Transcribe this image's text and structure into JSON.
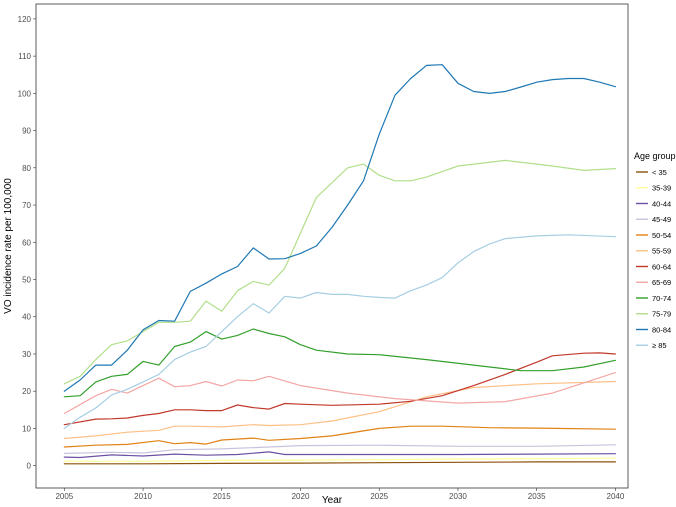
{
  "chart_data": {
    "type": "line",
    "xlabel": "Year",
    "ylabel": "VO incidence rate per 100,000",
    "xlim": [
      2003.2,
      2040.8
    ],
    "ylim": [
      -6,
      124
    ],
    "x_ticks": [
      "2005",
      "2010",
      "2015",
      "2020",
      "2025",
      "2030",
      "2035",
      "2040"
    ],
    "y_ticks": [
      "0",
      "10",
      "20",
      "30",
      "40",
      "50",
      "60",
      "70",
      "80",
      "90",
      "100",
      "110",
      "120"
    ],
    "grid": false,
    "legend": {
      "title": "Age group",
      "position": "right"
    },
    "series": [
      {
        "name": "< 35",
        "color": "#8c510a",
        "x": [
          2005,
          2010,
          2015,
          2020,
          2025,
          2030,
          2035,
          2040
        ],
        "y": [
          0.5,
          0.5,
          0.6,
          0.7,
          0.8,
          0.9,
          1.0,
          1.0
        ]
      },
      {
        "name": "35-39",
        "color": "#ffff99",
        "x": [
          2005,
          2010,
          2015,
          2020,
          2025,
          2030,
          2035,
          2040
        ],
        "y": [
          1.2,
          1.2,
          1.4,
          1.5,
          1.6,
          1.8,
          1.9,
          2.0
        ]
      },
      {
        "name": "40-44",
        "color": "#6a51a3",
        "x": [
          2005,
          2006,
          2008,
          2010,
          2012,
          2014,
          2016,
          2018,
          2019,
          2020,
          2025,
          2030,
          2035,
          2040
        ],
        "y": [
          2.3,
          2.2,
          2.9,
          2.6,
          3.1,
          2.8,
          3.0,
          3.7,
          3.0,
          3.0,
          3.0,
          3.0,
          3.1,
          3.2
        ]
      },
      {
        "name": "45-49",
        "color": "#c7c3dc",
        "x": [
          2005,
          2008,
          2010,
          2012,
          2015,
          2018,
          2020,
          2025,
          2030,
          2035,
          2040
        ],
        "y": [
          3.3,
          3.6,
          3.4,
          4.3,
          4.5,
          5.0,
          5.4,
          5.5,
          5.2,
          5.2,
          5.6
        ]
      },
      {
        "name": "50-54",
        "color": "#e08214",
        "x": [
          2005,
          2007,
          2009,
          2011,
          2012,
          2013,
          2014,
          2015,
          2017,
          2018,
          2020,
          2022,
          2025,
          2027,
          2029,
          2032,
          2035,
          2040
        ],
        "y": [
          5.0,
          5.5,
          5.7,
          6.7,
          5.9,
          6.2,
          5.8,
          6.9,
          7.4,
          6.8,
          7.3,
          8.0,
          10.0,
          10.6,
          10.6,
          10.2,
          10.1,
          9.8
        ]
      },
      {
        "name": "55-59",
        "color": "#fdc086",
        "x": [
          2005,
          2007,
          2009,
          2011,
          2012,
          2013,
          2015,
          2017,
          2018,
          2020,
          2022,
          2025,
          2028,
          2031,
          2035,
          2040
        ],
        "y": [
          7.3,
          8.0,
          9.0,
          9.5,
          10.6,
          10.6,
          10.4,
          11.0,
          10.8,
          11.0,
          12.0,
          14.5,
          18.5,
          21.0,
          22.0,
          22.6
        ]
      },
      {
        "name": "60-64",
        "color": "#c0392b",
        "x": [
          2005,
          2007,
          2008,
          2009,
          2010,
          2011,
          2012,
          2013,
          2014,
          2015,
          2016,
          2017,
          2018,
          2019,
          2020,
          2022,
          2025,
          2027,
          2029,
          2031,
          2033,
          2035,
          2036,
          2038,
          2039,
          2040
        ],
        "y": [
          11.0,
          12.5,
          12.6,
          12.8,
          13.5,
          14.0,
          15.0,
          15.0,
          14.8,
          14.8,
          16.3,
          15.6,
          15.2,
          16.7,
          16.5,
          16.2,
          16.5,
          17.3,
          18.8,
          21.5,
          24.5,
          27.8,
          29.5,
          30.2,
          30.3,
          30.0
        ]
      },
      {
        "name": "65-69",
        "color": "#f4a6a6",
        "x": [
          2005,
          2007,
          2008,
          2009,
          2010,
          2011,
          2012,
          2013,
          2014,
          2015,
          2016,
          2017,
          2018,
          2020,
          2023,
          2026,
          2030,
          2033,
          2036,
          2040
        ],
        "y": [
          14.0,
          18.8,
          20.5,
          19.5,
          21.5,
          23.5,
          21.2,
          21.5,
          22.6,
          21.4,
          23.0,
          22.8,
          24.0,
          21.5,
          19.5,
          18.0,
          16.8,
          17.2,
          19.5,
          25.0
        ]
      },
      {
        "name": "70-74",
        "color": "#33a02c",
        "x": [
          2005,
          2006,
          2007,
          2008,
          2009,
          2010,
          2011,
          2012,
          2013,
          2014,
          2015,
          2016,
          2017,
          2018,
          2019,
          2020,
          2021,
          2023,
          2025,
          2028,
          2031,
          2034,
          2036,
          2038,
          2040
        ],
        "y": [
          18.5,
          18.8,
          22.5,
          24.0,
          24.5,
          28.0,
          27.0,
          32.0,
          33.2,
          36.0,
          34.0,
          35.0,
          36.7,
          35.5,
          34.6,
          32.5,
          31.0,
          30.0,
          29.8,
          28.5,
          27.0,
          25.5,
          25.5,
          26.5,
          28.3
        ]
      },
      {
        "name": "75-79",
        "color": "#b2df8a",
        "x": [
          2005,
          2006,
          2007,
          2008,
          2009,
          2010,
          2011,
          2012,
          2013,
          2014,
          2015,
          2016,
          2017,
          2018,
          2019,
          2020,
          2021,
          2022,
          2023,
          2024,
          2025,
          2026,
          2027,
          2028,
          2030,
          2033,
          2036,
          2038,
          2040
        ],
        "y": [
          22.0,
          24.0,
          28.5,
          32.5,
          33.5,
          36.0,
          38.5,
          38.5,
          38.8,
          44.2,
          41.5,
          47.0,
          49.5,
          48.5,
          53.0,
          62.5,
          72.0,
          76.0,
          80.0,
          81.0,
          78.0,
          76.5,
          76.5,
          77.5,
          80.5,
          82.0,
          80.5,
          79.3,
          79.8
        ]
      },
      {
        "name": "80-84",
        "color": "#1f78b4",
        "x": [
          2005,
          2006,
          2007,
          2008,
          2009,
          2010,
          2011,
          2012,
          2013,
          2014,
          2015,
          2016,
          2017,
          2018,
          2019,
          2020,
          2021,
          2022,
          2023,
          2024,
          2025,
          2026,
          2027,
          2028,
          2029,
          2030,
          2031,
          2032,
          2033,
          2034,
          2035,
          2036,
          2037,
          2038,
          2039,
          2040
        ],
        "y": [
          20.0,
          23.0,
          27.0,
          27.0,
          31.0,
          36.5,
          39.0,
          38.8,
          46.8,
          49.0,
          51.5,
          53.5,
          58.5,
          55.5,
          55.6,
          57.0,
          59.0,
          64.0,
          70.0,
          76.5,
          89.0,
          99.5,
          104.0,
          107.5,
          107.7,
          102.7,
          100.5,
          100.0,
          100.5,
          101.7,
          103.0,
          103.7,
          104.0,
          104.0,
          103.0,
          101.8
        ]
      },
      {
        "name": "≥ 85",
        "color": "#a6cee3",
        "x": [
          2005,
          2006,
          2007,
          2008,
          2009,
          2010,
          2011,
          2012,
          2013,
          2014,
          2015,
          2016,
          2017,
          2018,
          2019,
          2020,
          2021,
          2022,
          2023,
          2024,
          2025,
          2026,
          2027,
          2028,
          2029,
          2030,
          2031,
          2032,
          2033,
          2035,
          2037,
          2040
        ],
        "y": [
          10.0,
          13.0,
          15.5,
          19.0,
          20.5,
          22.5,
          24.5,
          28.5,
          30.5,
          32.0,
          36.0,
          40.0,
          43.5,
          41.0,
          45.5,
          45.0,
          46.5,
          46.0,
          46.0,
          45.5,
          45.2,
          45.0,
          47.0,
          48.5,
          50.5,
          54.5,
          57.5,
          59.5,
          61.0,
          61.7,
          62.0,
          61.5
        ]
      }
    ]
  }
}
